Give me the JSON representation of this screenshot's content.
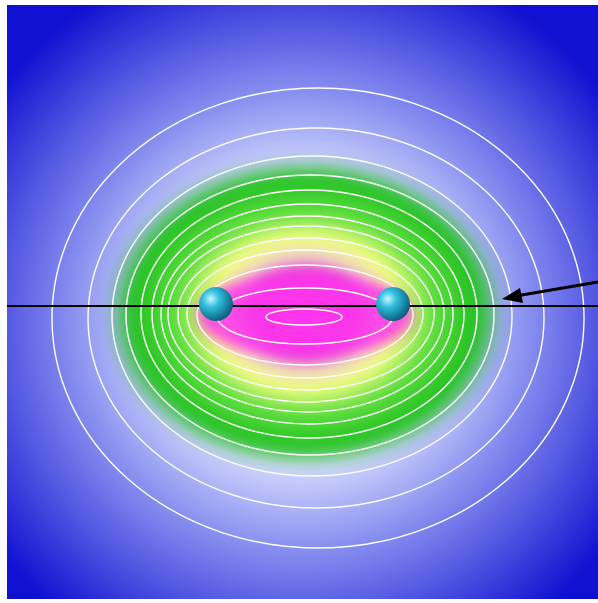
{
  "figure": {
    "kind": "electron density contour plot",
    "colors": {
      "outer": "#1010d0",
      "mid": "#c8d0ff",
      "band_green": "#20d020",
      "band_yellow": "#f0ff70",
      "core_magenta": "#f020e0",
      "contour_line": "#ffffff",
      "atom": "#2ab8d8",
      "axis_line": "#000000",
      "arrow": "#000000"
    },
    "contour_count": 13,
    "atoms": [
      {
        "name": "atom-left"
      },
      {
        "name": "atom-right"
      }
    ],
    "arrow": {
      "points_to": "bond-axis-line"
    }
  }
}
